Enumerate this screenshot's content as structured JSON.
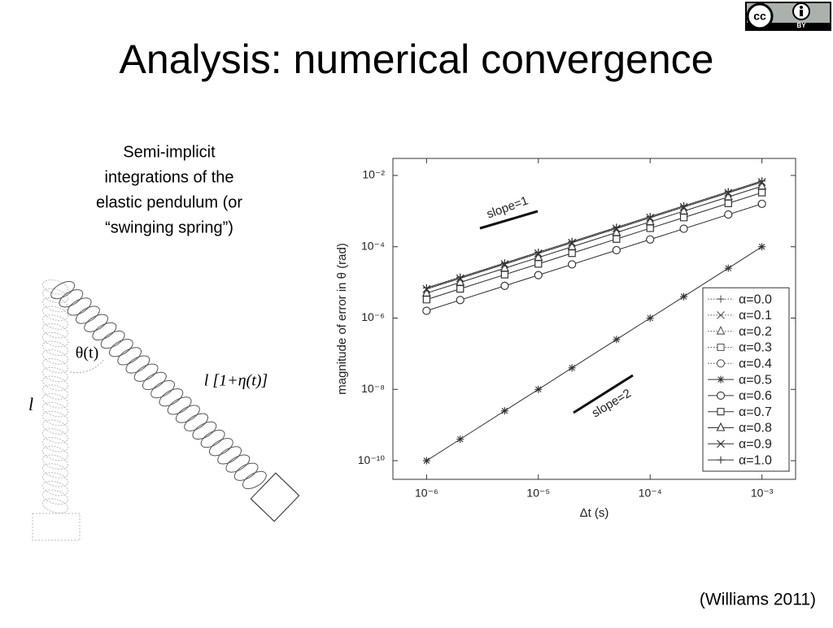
{
  "slide": {
    "title": "Analysis: numerical convergence",
    "description": [
      "Semi-implicit",
      "integrations of the",
      "elastic pendulum (or",
      "“swinging spring”)"
    ],
    "citation": "(Williams 2011)"
  },
  "license": {
    "cc": "cc",
    "by": "BY"
  },
  "diagram": {
    "angle_label": "θ(t)",
    "stretched_label": "l [1+η(t)]",
    "rest_label": "l"
  },
  "chart_data": {
    "type": "line",
    "x_label": "Δt (s)",
    "y_label": "magnitude of error in θ (rad)",
    "log_x": true,
    "log_y": true,
    "xlim": [
      5e-07,
      0.002
    ],
    "ylim": [
      3e-11,
      0.03
    ],
    "xticks": [
      {
        "value": 1e-06,
        "label": "10⁻⁶"
      },
      {
        "value": 1e-05,
        "label": "10⁻⁵"
      },
      {
        "value": 0.0001,
        "label": "10⁻⁴"
      },
      {
        "value": 0.001,
        "label": "10⁻³"
      }
    ],
    "yticks": [
      {
        "value": 1e-10,
        "label": "10⁻¹⁰"
      },
      {
        "value": 1e-08,
        "label": "10⁻⁸"
      },
      {
        "value": 1e-06,
        "label": "10⁻⁶"
      },
      {
        "value": 0.0001,
        "label": "10⁻⁴"
      },
      {
        "value": 0.01,
        "label": "10⁻²"
      }
    ],
    "legend": "lower right",
    "annotations": [
      "slope=1",
      "slope=2"
    ],
    "x": [
      1e-06,
      2e-06,
      5e-06,
      1e-05,
      2e-05,
      5e-05,
      0.0001,
      0.0002,
      0.0005,
      0.001
    ],
    "series": [
      {
        "name": "α=0.0",
        "color": "#555555",
        "marker": "plus",
        "linestyle": "dotted",
        "values": [
          7e-06,
          1.4e-05,
          3.5e-05,
          7e-05,
          0.00014,
          0.00035,
          0.0007,
          0.0014,
          0.0035,
          0.007
        ]
      },
      {
        "name": "α=0.1",
        "color": "#555555",
        "marker": "x",
        "linestyle": "dotted",
        "values": [
          6.5e-06,
          1.3e-05,
          3.25e-05,
          6.5e-05,
          0.00013,
          0.000325,
          0.00065,
          0.0013,
          0.00325,
          0.0065
        ]
      },
      {
        "name": "α=0.2",
        "color": "#555555",
        "marker": "triangle",
        "linestyle": "dotted",
        "values": [
          5e-06,
          1e-05,
          2.5e-05,
          5e-05,
          0.0001,
          0.00025,
          0.0005,
          0.001,
          0.0025,
          0.005
        ]
      },
      {
        "name": "α=0.3",
        "color": "#555555",
        "marker": "square",
        "linestyle": "dotted",
        "values": [
          3.3e-06,
          6.6e-06,
          1.65e-05,
          3.3e-05,
          6.6e-05,
          0.000165,
          0.00033,
          0.00066,
          0.00165,
          0.0033
        ]
      },
      {
        "name": "α=0.4",
        "color": "#555555",
        "marker": "circle",
        "linestyle": "dotted",
        "values": [
          1.6e-06,
          3.2e-06,
          8e-06,
          1.6e-05,
          3.2e-05,
          8e-05,
          0.00016,
          0.00032,
          0.0008,
          0.0016
        ]
      },
      {
        "name": "α=0.5",
        "color": "#333333",
        "marker": "star",
        "linestyle": "solid",
        "values": [
          1e-10,
          4e-10,
          2.5e-09,
          1e-08,
          4e-08,
          2.5e-07,
          1e-06,
          4e-06,
          2.5e-05,
          0.0001
        ]
      },
      {
        "name": "α=0.6",
        "color": "#333333",
        "marker": "circle",
        "linestyle": "solid",
        "values": [
          1.6e-06,
          3.2e-06,
          8e-06,
          1.6e-05,
          3.2e-05,
          8e-05,
          0.00016,
          0.00032,
          0.0008,
          0.0016
        ]
      },
      {
        "name": "α=0.7",
        "color": "#333333",
        "marker": "square",
        "linestyle": "solid",
        "values": [
          3.3e-06,
          6.6e-06,
          1.65e-05,
          3.3e-05,
          6.6e-05,
          0.000165,
          0.00033,
          0.00066,
          0.00165,
          0.0033
        ]
      },
      {
        "name": "α=0.8",
        "color": "#333333",
        "marker": "triangle",
        "linestyle": "solid",
        "values": [
          5e-06,
          1e-05,
          2.5e-05,
          5e-05,
          0.0001,
          0.00025,
          0.0005,
          0.001,
          0.0025,
          0.005
        ]
      },
      {
        "name": "α=0.9",
        "color": "#333333",
        "marker": "x",
        "linestyle": "solid",
        "values": [
          6.5e-06,
          1.3e-05,
          3.25e-05,
          6.5e-05,
          0.00013,
          0.000325,
          0.00065,
          0.0013,
          0.00325,
          0.0065
        ]
      },
      {
        "name": "α=1.0",
        "color": "#333333",
        "marker": "plus",
        "linestyle": "solid",
        "values": [
          7e-06,
          1.4e-05,
          3.5e-05,
          7e-05,
          0.00014,
          0.00035,
          0.0007,
          0.0014,
          0.0035,
          0.007
        ]
      }
    ]
  }
}
